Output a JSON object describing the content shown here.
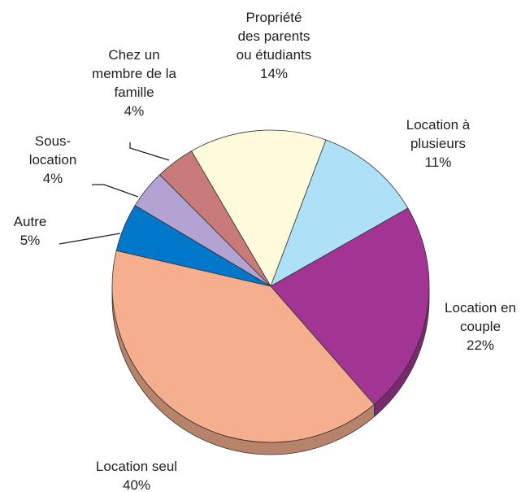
{
  "chart_data": {
    "type": "pie",
    "categories": [
      "Propriété des parents ou étudiants",
      "Location à plusieurs",
      "Location en couple",
      "Location seul",
      "Autre",
      "Sous-location",
      "Chez un membre de la famille"
    ],
    "values": [
      14,
      11,
      22,
      40,
      5,
      4,
      4
    ],
    "value_labels": [
      "14%",
      "11%",
      "22%",
      "40%",
      "5%",
      "4%",
      "4%"
    ],
    "colors": [
      "#fefbdc",
      "#aee0f7",
      "#a23594",
      "#f5ae8e",
      "#0077c8",
      "#b3a3d3",
      "#c97b7a"
    ]
  }
}
